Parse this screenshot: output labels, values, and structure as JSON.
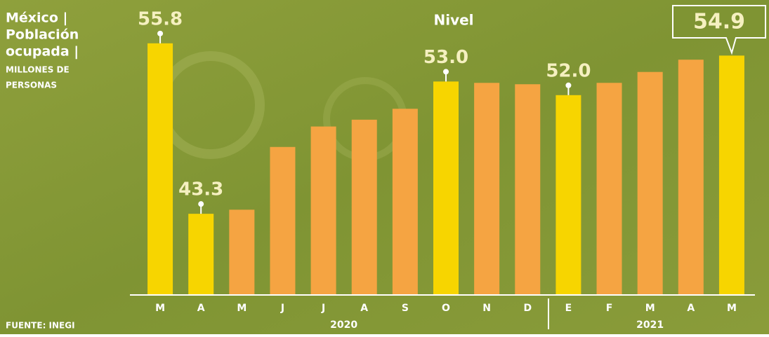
{
  "chart_data": {
    "type": "bar",
    "title": [
      "México |",
      "Población",
      "ocupada |"
    ],
    "subtitle": [
      "MILLONES DE",
      "PERSONAS"
    ],
    "annotation": "Nivel",
    "source": "FUENTE: INEGI",
    "categories": [
      "M",
      "A",
      "M",
      "J",
      "J",
      "A",
      "S",
      "O",
      "N",
      "D",
      "E",
      "F",
      "M",
      "A",
      "M"
    ],
    "years": [
      "2020",
      "2020",
      "2020",
      "2020",
      "2020",
      "2020",
      "2020",
      "2020",
      "2020",
      "2020",
      "2021",
      "2021",
      "2021",
      "2021",
      "2021"
    ],
    "values": [
      55.8,
      43.3,
      43.6,
      48.2,
      49.7,
      50.2,
      51.0,
      53.0,
      52.9,
      52.8,
      52.0,
      52.9,
      53.7,
      54.6,
      54.9
    ],
    "value_labels": [
      "55.8",
      "43.3",
      null,
      null,
      null,
      null,
      null,
      "53.0",
      null,
      null,
      "52.0",
      null,
      null,
      null,
      "54.9"
    ],
    "colors": [
      "#f7d500",
      "#f7d500",
      "#f5a442",
      "#f5a442",
      "#f5a442",
      "#f5a442",
      "#f5a442",
      "#f7d500",
      "#f5a442",
      "#f5a442",
      "#f7d500",
      "#f5a442",
      "#f5a442",
      "#f5a442",
      "#f7d500"
    ],
    "ylim": [
      37.4,
      58
    ]
  }
}
